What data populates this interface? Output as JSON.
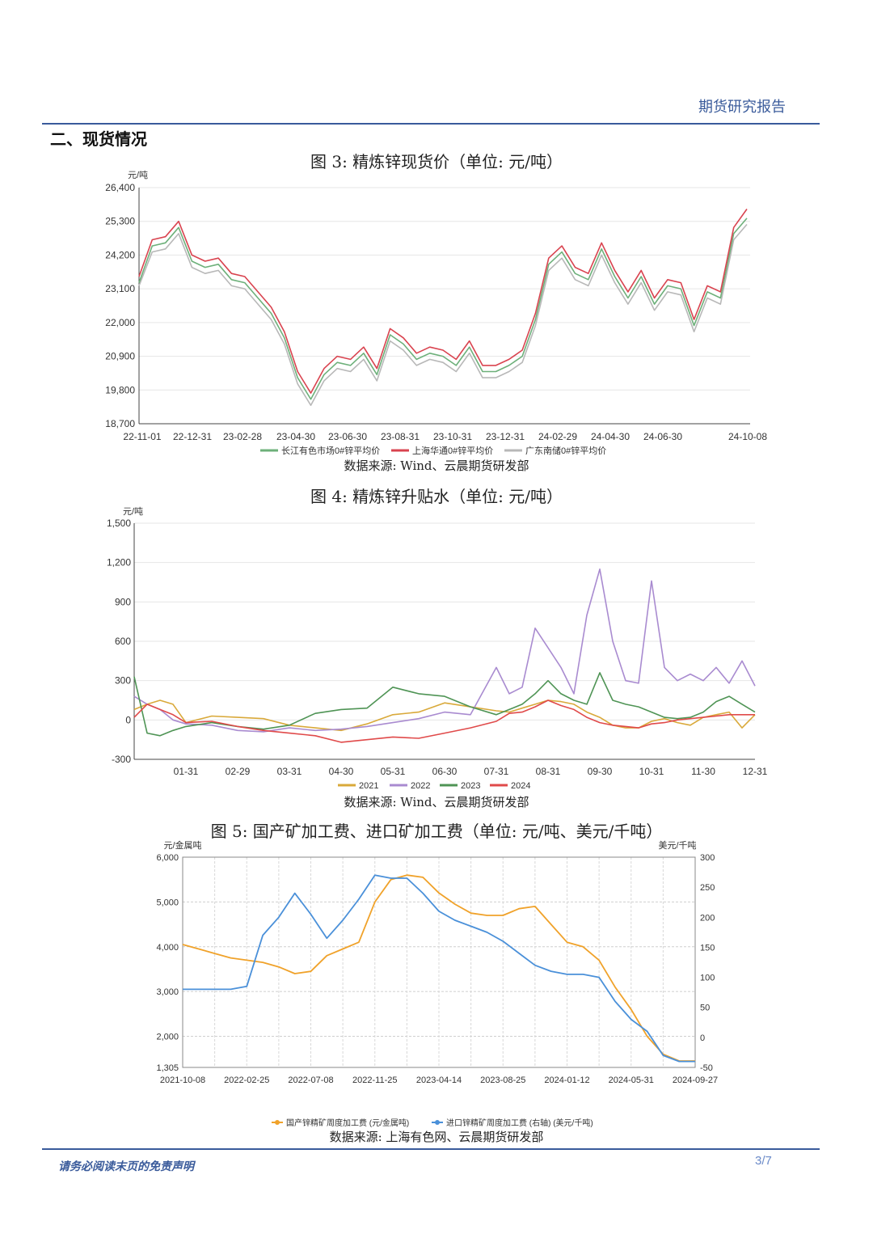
{
  "header": {
    "title": "期货研究报告"
  },
  "section": {
    "title": "二、现货情况"
  },
  "figures": [
    {
      "title": "图 3: 精炼锌现货价（单位: 元/吨）",
      "source": "数据来源: Wind、云晨期货研发部"
    },
    {
      "title": "图 4: 精炼锌升贴水（单位: 元/吨）",
      "source": "数据来源: Wind、云晨期货研发部"
    },
    {
      "title": "图 5: 国产矿加工费、进口矿加工费（单位: 元/吨、美元/千吨）",
      "source": "数据来源: 上海有色网、云晨期货研发部"
    }
  ],
  "footer": {
    "disclaimer": "请务必阅读末页的免责声明",
    "page": "3/7"
  },
  "chart_data": [
    {
      "type": "line",
      "unit": "元/吨",
      "ylim": [
        18700,
        26400
      ],
      "yticks": [
        "26,400",
        "25,300",
        "24,200",
        "23,100",
        "22,000",
        "20,900",
        "19,800",
        "18,700"
      ],
      "xticks": [
        "22-11-01",
        "22-12-31",
        "23-02-28",
        "23-04-30",
        "23-06-30",
        "23-08-31",
        "23-10-31",
        "23-12-31",
        "24-02-29",
        "24-04-30",
        "24-06-30",
        "24-10-08"
      ],
      "x_index_range": [
        0,
        23
      ],
      "xtick_pos": [
        0,
        2,
        4,
        6,
        8,
        10,
        12,
        14,
        16,
        18,
        20,
        23
      ],
      "series_x": [
        0,
        0.5,
        1,
        1.5,
        2,
        2.5,
        3,
        3.5,
        4,
        4.5,
        5,
        5.5,
        6,
        6.5,
        7,
        7.5,
        8,
        8.5,
        9,
        9.5,
        10,
        10.5,
        11,
        11.5,
        12,
        12.5,
        13,
        13.5,
        14,
        14.5,
        15,
        15.5,
        16,
        16.5,
        17,
        17.5,
        18,
        18.5,
        19,
        19.5,
        20,
        20.5,
        21,
        21.5,
        22,
        22.5,
        23
      ],
      "series": [
        {
          "name": "长江有色市场0#锌平均价",
          "color": "#6db07a",
          "values": [
            23300,
            24500,
            24600,
            25100,
            24000,
            23800,
            23900,
            23400,
            23300,
            22800,
            22300,
            21500,
            20200,
            19500,
            20300,
            20700,
            20600,
            21000,
            20300,
            21600,
            21300,
            20800,
            21000,
            20900,
            20600,
            21200,
            20400,
            20400,
            20600,
            20900,
            22100,
            23900,
            24300,
            23600,
            23400,
            24400,
            23500,
            22800,
            23500,
            22600,
            23200,
            23100,
            21900,
            23000,
            22800,
            24900,
            25400
          ]
        },
        {
          "name": "上海华通0#锌平均价",
          "color": "#d9434f",
          "values": [
            23500,
            24700,
            24800,
            25300,
            24200,
            24000,
            24100,
            23600,
            23500,
            23000,
            22500,
            21700,
            20400,
            19700,
            20500,
            20900,
            20800,
            21200,
            20500,
            21800,
            21500,
            21000,
            21200,
            21100,
            20800,
            21400,
            20600,
            20600,
            20800,
            21100,
            22300,
            24100,
            24500,
            23800,
            23600,
            24600,
            23700,
            23000,
            23700,
            22800,
            23400,
            23300,
            22100,
            23200,
            23000,
            25100,
            25700
          ]
        },
        {
          "name": "广东南储0#锌平均价",
          "color": "#b8b8b8",
          "values": [
            23200,
            24300,
            24400,
            24900,
            23800,
            23600,
            23700,
            23200,
            23100,
            22600,
            22100,
            21300,
            20000,
            19300,
            20100,
            20500,
            20400,
            20800,
            20100,
            21400,
            21100,
            20600,
            20800,
            20700,
            20400,
            21000,
            20200,
            20200,
            20400,
            20700,
            21900,
            23700,
            24100,
            23400,
            23200,
            24200,
            23300,
            22600,
            23300,
            22400,
            23000,
            22900,
            21700,
            22800,
            22600,
            24700,
            25200
          ]
        }
      ]
    },
    {
      "type": "line",
      "unit": "元/吨",
      "ylim": [
        -300,
        1500
      ],
      "yticks": [
        "1,500",
        "1,200",
        "900",
        "600",
        "300",
        "0",
        "-300"
      ],
      "xticks": [
        "01-31",
        "02-29",
        "03-31",
        "04-30",
        "05-31",
        "06-30",
        "07-31",
        "08-31",
        "09-30",
        "10-31",
        "11-30",
        "12-31"
      ],
      "x_range": [
        0,
        12
      ],
      "xtick_pos": [
        1,
        2,
        3,
        4,
        5,
        6,
        7,
        8,
        9,
        10,
        11,
        12
      ],
      "series_x": [
        0,
        0.25,
        0.5,
        0.75,
        1,
        1.5,
        2,
        2.5,
        3,
        3.5,
        4,
        4.5,
        5,
        5.5,
        6,
        6.5,
        7,
        7.25,
        7.5,
        7.75,
        8,
        8.25,
        8.5,
        8.75,
        9,
        9.25,
        9.5,
        9.75,
        10,
        10.25,
        10.5,
        10.75,
        11,
        11.25,
        11.5,
        11.75,
        12
      ],
      "series": [
        {
          "name": "2021",
          "color": "#d9a93a",
          "values": [
            80,
            120,
            150,
            120,
            -20,
            30,
            20,
            10,
            -40,
            -60,
            -80,
            -30,
            40,
            60,
            130,
            100,
            70,
            60,
            90,
            120,
            150,
            140,
            120,
            60,
            20,
            -40,
            -60,
            -60,
            -10,
            10,
            -20,
            -40,
            20,
            40,
            60,
            -60,
            40
          ]
        },
        {
          "name": "2022",
          "color": "#a98bd0",
          "values": [
            180,
            120,
            80,
            0,
            -30,
            -40,
            -80,
            -90,
            -60,
            -80,
            -70,
            -50,
            -20,
            10,
            60,
            40,
            400,
            200,
            250,
            700,
            550,
            400,
            200,
            800,
            1150,
            600,
            300,
            280,
            1060,
            400,
            300,
            350,
            300,
            400,
            280,
            450,
            260
          ]
        },
        {
          "name": "2023",
          "color": "#4f9455",
          "values": [
            330,
            -100,
            -120,
            -80,
            -50,
            -20,
            -50,
            -70,
            -40,
            50,
            80,
            90,
            250,
            200,
            180,
            100,
            40,
            80,
            120,
            200,
            300,
            200,
            150,
            120,
            360,
            150,
            120,
            100,
            60,
            20,
            10,
            20,
            60,
            140,
            180,
            120,
            60
          ]
        },
        {
          "name": "2024",
          "color": "#e04a4a",
          "values": [
            20,
            120,
            80,
            40,
            -20,
            -10,
            -50,
            -80,
            -100,
            -120,
            -170,
            -150,
            -130,
            -140,
            -100,
            -60,
            -10,
            50,
            60,
            100,
            150,
            110,
            80,
            20,
            -20,
            -40,
            -50,
            -60,
            -30,
            -20,
            0,
            10,
            20,
            30,
            40,
            40,
            40
          ]
        }
      ]
    },
    {
      "type": "line",
      "left_unit": "元/金属吨",
      "right_unit": "美元/千吨",
      "ylim_left": [
        1305,
        6000
      ],
      "ylim_right": [
        -50,
        300
      ],
      "yticks_left": [
        "6,000",
        "5,000",
        "4,000",
        "3,000",
        "2,000",
        "1,305"
      ],
      "yticks_right": [
        "300",
        "250",
        "200",
        "150",
        "100",
        "50",
        "0",
        "-50"
      ],
      "xticks": [
        "2021-10-08",
        "2022-02-25",
        "2022-07-08",
        "2022-11-25",
        "2023-04-14",
        "2023-08-25",
        "2024-01-12",
        "2024-05-31",
        "2024-09-27"
      ],
      "x_range": [
        0,
        8
      ],
      "xtick_pos": [
        0,
        1,
        2,
        3,
        4,
        5,
        6,
        7,
        8
      ],
      "series_x": [
        0,
        0.25,
        0.5,
        0.75,
        1,
        1.25,
        1.5,
        1.75,
        2,
        2.25,
        2.5,
        2.75,
        3,
        3.25,
        3.5,
        3.75,
        4,
        4.25,
        4.5,
        4.75,
        5,
        5.25,
        5.5,
        5.75,
        6,
        6.25,
        6.5,
        6.75,
        7,
        7.25,
        7.5,
        7.75,
        8
      ],
      "series": [
        {
          "name": "国产锌精矿周度加工费 (元/金属吨)",
          "axis": "left",
          "color": "#f0a22a",
          "values": [
            4050,
            3950,
            3850,
            3750,
            3700,
            3650,
            3550,
            3400,
            3450,
            3800,
            3950,
            4100,
            5000,
            5500,
            5600,
            5550,
            5200,
            4950,
            4750,
            4700,
            4700,
            4850,
            4900,
            4500,
            4100,
            4000,
            3700,
            3100,
            2600,
            2000,
            1600,
            1450,
            1450
          ]
        },
        {
          "name": "进口锌精矿周度加工费 (右轴) (美元/千吨)",
          "axis": "right",
          "color": "#4a90d9",
          "values": [
            80,
            80,
            80,
            80,
            85,
            170,
            200,
            240,
            205,
            165,
            195,
            230,
            270,
            265,
            265,
            240,
            210,
            195,
            185,
            175,
            160,
            140,
            120,
            110,
            105,
            105,
            100,
            60,
            30,
            10,
            -30,
            -40,
            -40
          ]
        }
      ]
    }
  ]
}
